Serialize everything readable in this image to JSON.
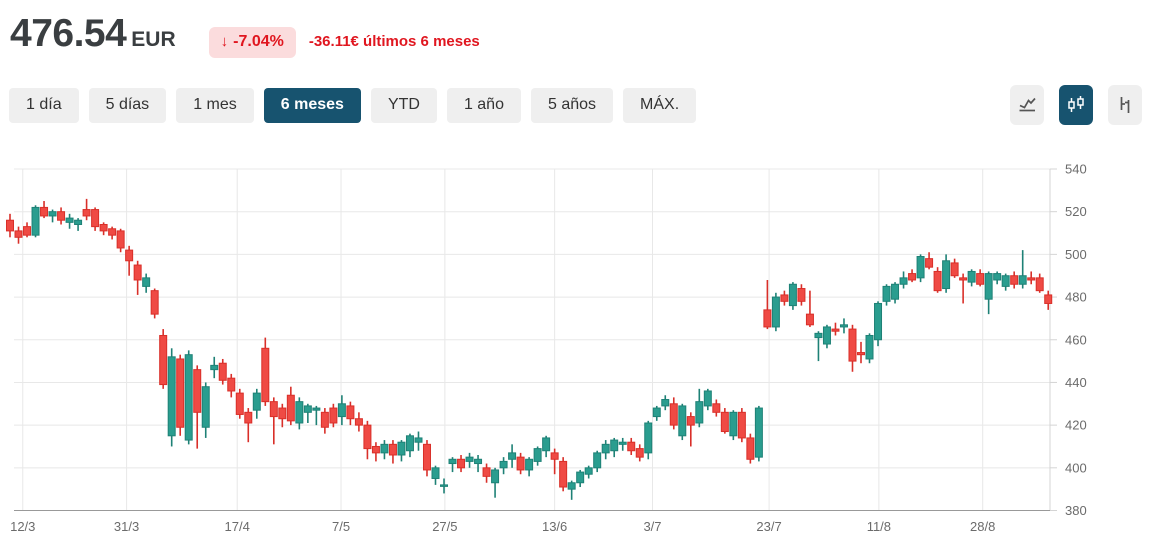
{
  "header": {
    "price": "476.54",
    "currency": "EUR",
    "arrow_icon": "↓",
    "change_percent": "-7.04%",
    "change_text": "-36.11€ últimos 6 meses"
  },
  "toolbar": {
    "ranges": [
      {
        "label": "1 día",
        "active": false
      },
      {
        "label": "5 días",
        "active": false
      },
      {
        "label": "1 mes",
        "active": false
      },
      {
        "label": "6 meses",
        "active": true
      },
      {
        "label": "YTD",
        "active": false
      },
      {
        "label": "1 año",
        "active": false
      },
      {
        "label": "5 años",
        "active": false
      },
      {
        "label": "MÁX.",
        "active": false
      }
    ],
    "chart_types": [
      {
        "icon": "line-chart-icon",
        "active": false
      },
      {
        "icon": "candlestick-chart-icon",
        "active": true
      },
      {
        "icon": "ohlc-chart-icon",
        "active": false
      }
    ]
  },
  "colors": {
    "accent_active": "#17536f",
    "negative_text": "#e0161f",
    "badge_bg": "#fbdcdd",
    "candle_up": "#2a9d8f",
    "candle_up_stroke": "#1e8176",
    "candle_down": "#ef4a44",
    "candle_down_stroke": "#d92f29",
    "gridline": "#e8e8e8",
    "axis_line": "#999999",
    "right_axis": "#d4d4d4",
    "tick_text": "#6b6b6b"
  },
  "chart_data": {
    "type": "candlestick",
    "title": "",
    "xlabel": "",
    "ylabel": "",
    "ylim": [
      380,
      540
    ],
    "grid": true,
    "y_ticks": [
      380,
      400,
      420,
      440,
      460,
      480,
      500,
      520,
      540
    ],
    "x_ticks": [
      {
        "label": "12/3",
        "i": 1.5
      },
      {
        "label": "31/3",
        "i": 13.7
      },
      {
        "label": "17/4",
        "i": 26.7
      },
      {
        "label": "7/5",
        "i": 38.9
      },
      {
        "label": "27/5",
        "i": 51.1
      },
      {
        "label": "13/6",
        "i": 64.0
      },
      {
        "label": "3/7",
        "i": 75.5
      },
      {
        "label": "23/7",
        "i": 89.2
      },
      {
        "label": "11/8",
        "i": 102.1
      },
      {
        "label": "28/8",
        "i": 114.3
      }
    ],
    "candles_format": [
      "open",
      "high",
      "low",
      "close"
    ],
    "candles": [
      [
        516,
        519,
        508,
        511
      ],
      [
        511,
        513,
        505,
        508
      ],
      [
        513,
        515,
        508,
        509
      ],
      [
        509,
        523,
        508,
        522
      ],
      [
        522,
        525,
        517,
        518
      ],
      [
        518,
        521,
        515,
        520
      ],
      [
        520,
        522,
        514,
        516
      ],
      [
        515,
        519,
        512,
        517
      ],
      [
        514,
        517,
        511,
        516
      ],
      [
        521,
        526,
        516,
        518
      ],
      [
        521,
        522,
        511,
        513
      ],
      [
        514,
        515,
        509,
        511
      ],
      [
        512,
        513,
        507,
        509
      ],
      [
        511,
        512,
        501,
        503
      ],
      [
        502,
        504,
        490,
        497
      ],
      [
        495,
        497,
        481,
        488
      ],
      [
        485,
        491,
        482,
        489
      ],
      [
        483,
        484,
        470,
        472
      ],
      [
        462,
        465,
        437,
        439
      ],
      [
        415,
        456,
        410,
        452
      ],
      [
        451,
        453,
        415,
        419
      ],
      [
        413,
        455,
        411,
        453
      ],
      [
        446,
        448,
        409,
        426
      ],
      [
        419,
        440,
        414,
        438
      ],
      [
        446,
        452,
        442,
        448
      ],
      [
        449,
        451,
        439,
        441
      ],
      [
        442,
        444,
        433,
        436
      ],
      [
        435,
        437,
        423,
        425
      ],
      [
        426,
        428,
        412,
        421
      ],
      [
        427,
        437,
        423,
        435
      ],
      [
        456,
        461,
        429,
        431
      ],
      [
        431,
        433,
        411,
        424
      ],
      [
        428,
        430,
        419,
        423
      ],
      [
        434,
        438,
        420,
        422
      ],
      [
        421,
        433,
        418,
        431
      ],
      [
        426,
        430,
        421,
        429
      ],
      [
        427,
        429,
        420,
        428
      ],
      [
        426,
        428,
        416,
        419
      ],
      [
        428,
        430,
        419,
        421
      ],
      [
        424,
        434,
        420,
        430
      ],
      [
        429,
        431,
        420,
        423
      ],
      [
        423,
        426,
        417,
        420
      ],
      [
        420,
        422,
        404,
        409
      ],
      [
        410,
        412,
        403,
        407
      ],
      [
        407,
        413,
        404,
        411
      ],
      [
        411,
        413,
        402,
        406
      ],
      [
        406,
        413,
        403,
        412
      ],
      [
        408,
        416,
        405,
        415
      ],
      [
        412,
        417,
        408,
        414
      ],
      [
        411,
        413,
        396,
        399
      ],
      [
        395,
        401,
        392,
        400
      ],
      [
        392,
        395,
        388,
        392
      ],
      [
        402,
        405,
        398,
        404
      ],
      [
        404,
        406,
        398,
        400
      ],
      [
        403,
        407,
        400,
        405
      ],
      [
        402,
        406,
        398,
        404
      ],
      [
        400,
        402,
        393,
        396
      ],
      [
        393,
        400,
        386,
        399
      ],
      [
        400,
        405,
        397,
        403
      ],
      [
        404,
        411,
        400,
        407
      ],
      [
        405,
        407,
        397,
        399
      ],
      [
        399,
        405,
        396,
        404
      ],
      [
        403,
        410,
        401,
        409
      ],
      [
        408,
        415,
        405,
        414
      ],
      [
        407,
        409,
        397,
        404
      ],
      [
        403,
        405,
        389,
        391
      ],
      [
        390,
        394,
        385,
        393
      ],
      [
        393,
        399,
        391,
        398
      ],
      [
        397,
        401,
        395,
        400
      ],
      [
        400,
        408,
        398,
        407
      ],
      [
        407,
        413,
        404,
        411
      ],
      [
        408,
        414,
        405,
        413
      ],
      [
        411,
        414,
        408,
        412
      ],
      [
        412,
        414,
        406,
        408
      ],
      [
        409,
        411,
        403,
        405
      ],
      [
        407,
        422,
        404,
        421
      ],
      [
        424,
        429,
        422,
        428
      ],
      [
        429,
        434,
        427,
        432
      ],
      [
        430,
        433,
        418,
        420
      ],
      [
        415,
        430,
        413,
        429
      ],
      [
        424,
        426,
        410,
        420
      ],
      [
        421,
        437,
        419,
        431
      ],
      [
        429,
        437,
        427,
        436
      ],
      [
        430,
        432,
        424,
        426
      ],
      [
        426,
        428,
        416,
        417
      ],
      [
        415,
        427,
        413,
        426
      ],
      [
        426,
        428,
        412,
        414
      ],
      [
        414,
        416,
        402,
        404
      ],
      [
        405,
        429,
        403,
        428
      ],
      [
        474,
        488,
        465,
        466
      ],
      [
        466,
        482,
        464,
        480
      ],
      [
        481,
        483,
        476,
        478
      ],
      [
        476,
        487,
        474,
        486
      ],
      [
        484,
        486,
        476,
        478
      ],
      [
        472,
        483,
        466,
        467
      ],
      [
        461,
        464,
        450,
        463
      ],
      [
        458,
        467,
        456,
        466
      ],
      [
        465,
        468,
        462,
        464
      ],
      [
        466,
        470,
        463,
        467
      ],
      [
        465,
        467,
        445,
        450
      ],
      [
        454,
        459,
        449,
        453
      ],
      [
        451,
        463,
        449,
        462
      ],
      [
        460,
        478,
        457,
        477
      ],
      [
        478,
        486,
        476,
        485
      ],
      [
        479,
        487,
        477,
        486
      ],
      [
        486,
        492,
        484,
        489
      ],
      [
        491,
        493,
        487,
        488
      ],
      [
        489,
        500,
        487,
        499
      ],
      [
        498,
        501,
        493,
        494
      ],
      [
        492,
        494,
        482,
        483
      ],
      [
        484,
        500,
        482,
        497
      ],
      [
        496,
        498,
        489,
        490
      ],
      [
        489,
        491,
        477,
        488
      ],
      [
        487,
        493,
        485,
        492
      ],
      [
        491,
        493,
        485,
        486
      ],
      [
        479,
        492,
        472,
        491
      ],
      [
        488,
        492,
        486,
        491
      ],
      [
        485,
        491,
        483,
        490
      ],
      [
        490,
        492,
        484,
        486
      ],
      [
        486,
        502,
        484,
        490
      ],
      [
        489,
        492,
        486,
        488
      ],
      [
        489,
        491,
        482,
        483
      ],
      [
        481,
        483,
        474,
        477
      ]
    ]
  }
}
